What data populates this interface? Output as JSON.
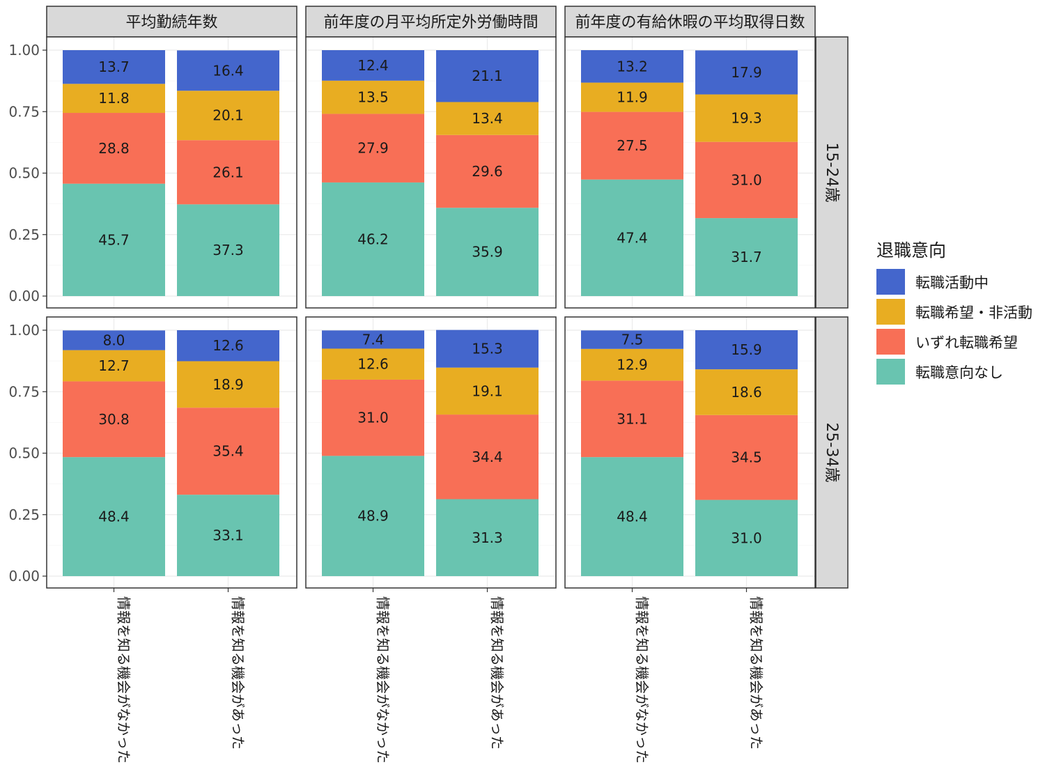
{
  "chart_data": {
    "type": "stacked-bar-faceted",
    "y_axis": {
      "range": [
        0,
        1
      ],
      "ticks": [
        "0.00",
        "0.25",
        "0.50",
        "0.75",
        "1.00"
      ]
    },
    "column_facets": [
      "平均勤続年数",
      "前年度の月平均所定外労働時間",
      "前年度の有給休暇の平均取得日数"
    ],
    "row_facets": [
      "15-24歳",
      "25-34歳"
    ],
    "categories": [
      "情報を知る機会がなかった",
      "情報を知る機会があった"
    ],
    "legend": {
      "title": "退職意向",
      "items": [
        {
          "name": "転職活動中",
          "color": "#4466CC"
        },
        {
          "name": "転職希望・非活動",
          "color": "#E8AD22"
        },
        {
          "name": "いずれ転職希望",
          "color": "#F86F56"
        },
        {
          "name": "転職意向なし",
          "color": "#69C4B0"
        }
      ]
    },
    "stack_order_bottom_to_top": [
      "転職意向なし",
      "いずれ転職希望",
      "転職希望・非活動",
      "転職活動中"
    ],
    "panels": [
      {
        "row": 0,
        "col": 0,
        "bars": [
          {
            "category": 0,
            "values": [
              45.7,
              28.8,
              11.8,
              13.7
            ]
          },
          {
            "category": 1,
            "values": [
              37.3,
              26.1,
              20.1,
              16.4
            ]
          }
        ]
      },
      {
        "row": 0,
        "col": 1,
        "bars": [
          {
            "category": 0,
            "values": [
              46.2,
              27.9,
              13.5,
              12.4
            ]
          },
          {
            "category": 1,
            "values": [
              35.9,
              29.6,
              13.4,
              21.1
            ]
          }
        ]
      },
      {
        "row": 0,
        "col": 2,
        "bars": [
          {
            "category": 0,
            "values": [
              47.4,
              27.5,
              11.9,
              13.2
            ]
          },
          {
            "category": 1,
            "values": [
              31.7,
              31.0,
              19.3,
              17.9
            ]
          }
        ]
      },
      {
        "row": 1,
        "col": 0,
        "bars": [
          {
            "category": 0,
            "values": [
              48.4,
              30.8,
              12.7,
              8.0
            ]
          },
          {
            "category": 1,
            "values": [
              33.1,
              35.4,
              18.9,
              12.6
            ]
          }
        ]
      },
      {
        "row": 1,
        "col": 1,
        "bars": [
          {
            "category": 0,
            "values": [
              48.9,
              31.0,
              12.6,
              7.4
            ]
          },
          {
            "category": 1,
            "values": [
              31.3,
              34.4,
              19.1,
              15.3
            ]
          }
        ]
      },
      {
        "row": 1,
        "col": 2,
        "bars": [
          {
            "category": 0,
            "values": [
              48.4,
              31.1,
              12.9,
              7.5
            ]
          },
          {
            "category": 1,
            "values": [
              31.0,
              34.5,
              18.6,
              15.9
            ]
          }
        ]
      }
    ],
    "grid": true
  }
}
